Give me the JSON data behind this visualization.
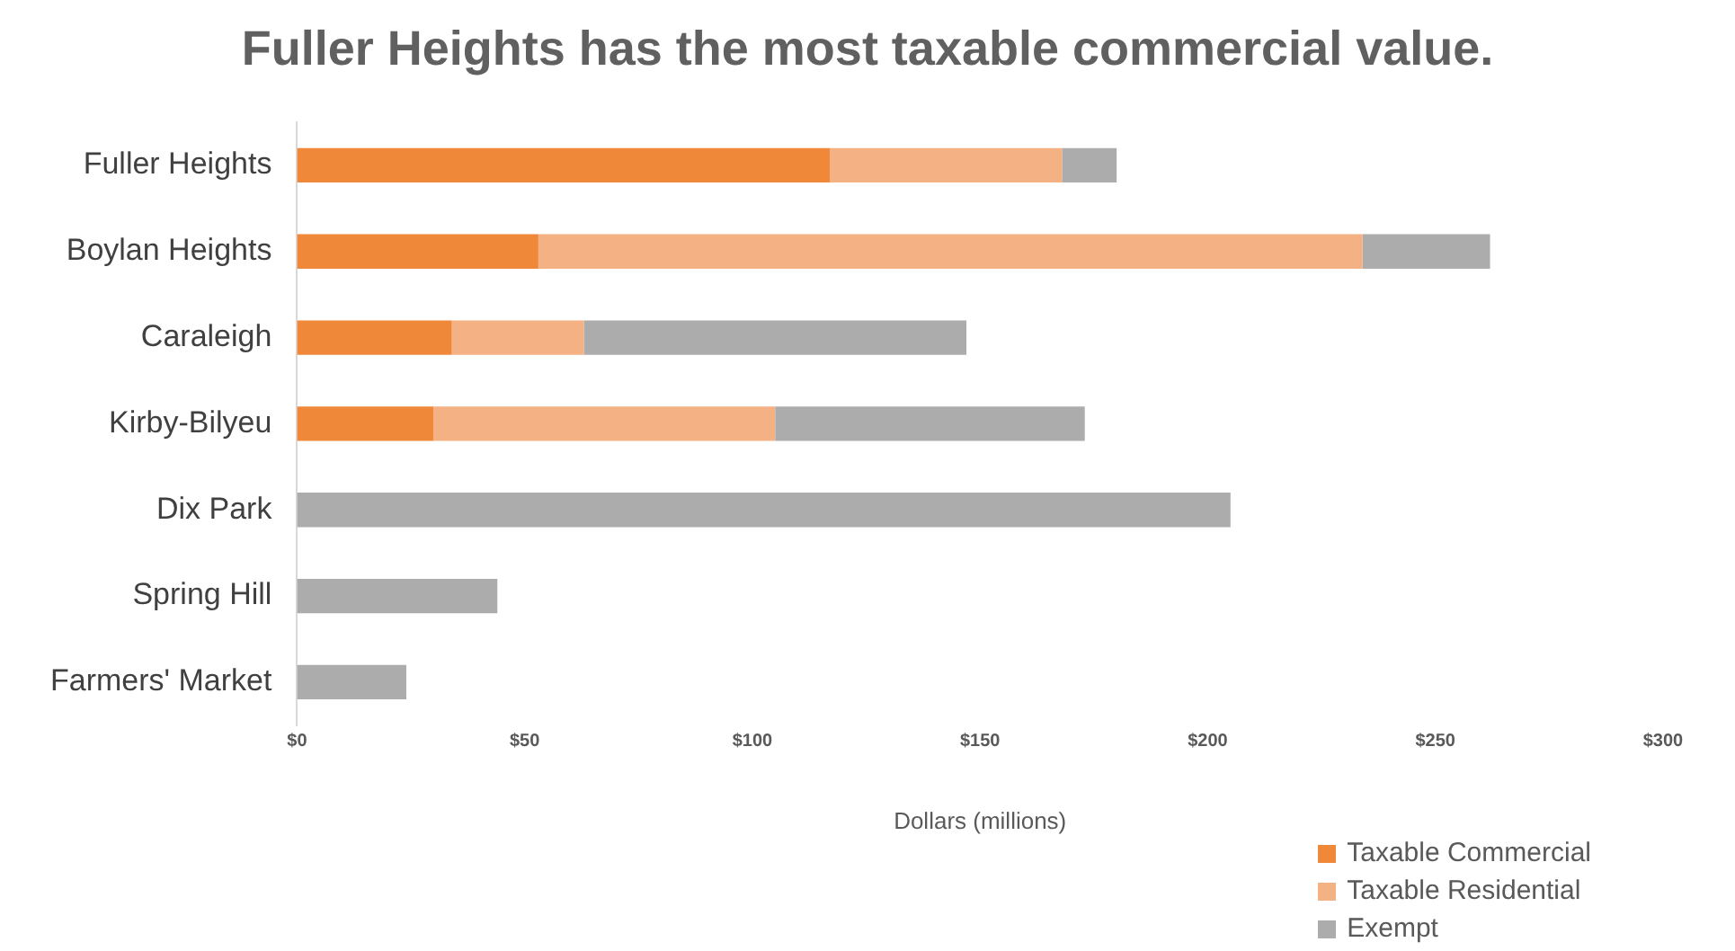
{
  "chart_data": {
    "type": "bar",
    "orientation": "horizontal",
    "stacked": true,
    "title": "Fuller Heights has the most taxable commercial value.",
    "xlabel": "Dollars (millions)",
    "categories": [
      "Fuller Heights",
      "Boylan Heights",
      "Caraleigh",
      "Kirby-Bilyeu",
      "Dix Park",
      "Spring Hill",
      "Farmers' Market"
    ],
    "series": [
      {
        "name": "Taxable Commercial",
        "color": "#f0883a",
        "values": [
          117,
          53,
          34,
          30,
          0,
          0,
          0
        ]
      },
      {
        "name": "Taxable Residential",
        "color": "#f4b183",
        "values": [
          51,
          181,
          29,
          75,
          0,
          0,
          0
        ]
      },
      {
        "name": "Exempt",
        "color": "#acacac",
        "values": [
          12,
          28,
          84,
          68,
          205,
          44,
          24
        ]
      }
    ],
    "xlim": [
      0,
      300
    ],
    "xticks": [
      {
        "value": 0,
        "label": "$0"
      },
      {
        "value": 50,
        "label": "$50"
      },
      {
        "value": 100,
        "label": "$100"
      },
      {
        "value": 150,
        "label": "$150"
      },
      {
        "value": 200,
        "label": "$200"
      },
      {
        "value": 250,
        "label": "$250"
      },
      {
        "value": 300,
        "label": "$300"
      }
    ],
    "grid": false,
    "legend": "bottom right"
  }
}
